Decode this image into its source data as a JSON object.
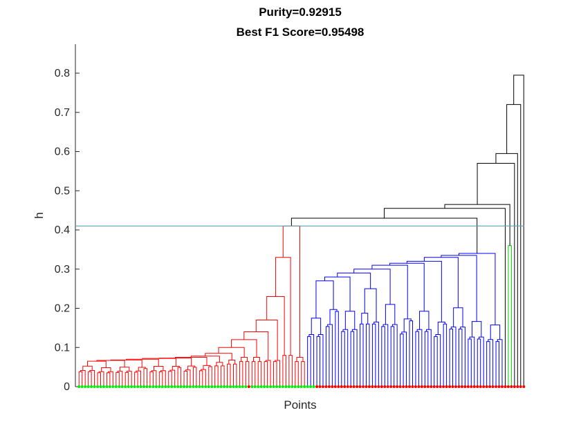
{
  "chart_data": {
    "type": "dendrogram",
    "title_lines": [
      "Purity=0.92915",
      "Best F1 Score=0.95498"
    ],
    "xlabel": "Points",
    "ylabel": "h",
    "ylim": [
      0,
      0.8
    ],
    "yticks": [
      0,
      0.1,
      0.2,
      0.3,
      0.4,
      0.5,
      0.6,
      0.7,
      0.8
    ],
    "ytick_labels": [
      "0",
      "0.1",
      "0.2",
      "0.3",
      "0.4",
      "0.5",
      "0.6",
      "0.7",
      "0.8"
    ],
    "cut_height": 0.41,
    "grid": false,
    "clusters": [
      {
        "color": "#ff0000",
        "leaf_count": 78,
        "top_merge_height": 0.41
      },
      {
        "color": "#0000ff",
        "leaf_count": 64,
        "top_merge_height": 0.34
      },
      {
        "color": "#00cc00",
        "leaf_count": 2,
        "top_merge_height": 0.36
      }
    ],
    "upper_merge_heights": [
      0.43,
      0.455,
      0.465,
      0.57,
      0.595,
      0.72,
      0.795
    ],
    "leaf_true_labels": {
      "first_group": "#00ee00",
      "second_group": "#ff0000"
    },
    "colors": {
      "cut_line": "#5aa0b4",
      "upper_links": "#000000",
      "axis": "#262626"
    }
  }
}
